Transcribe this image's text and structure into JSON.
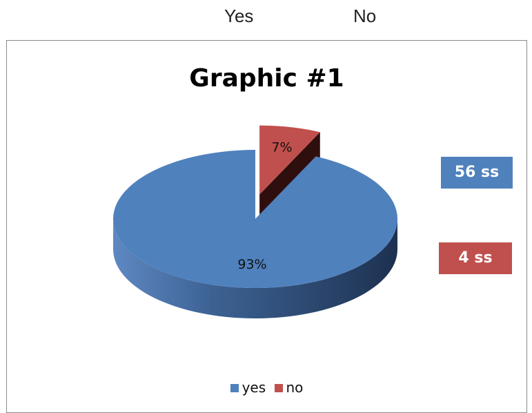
{
  "header_labels": {
    "yes": "Yes",
    "no": "No"
  },
  "chart_data": {
    "type": "pie",
    "title": "Graphic #1",
    "three_d": true,
    "exploded_slice": "no",
    "slices": [
      {
        "label": "yes",
        "value": 93,
        "data_label": "93%",
        "color": "#4f81bd",
        "count_label": "56 ss"
      },
      {
        "label": "no",
        "value": 7,
        "data_label": "7%",
        "color": "#c0504d",
        "count_label": "4 ss"
      }
    ],
    "legend": {
      "position": "bottom",
      "entries": [
        "yes",
        "no"
      ]
    }
  }
}
